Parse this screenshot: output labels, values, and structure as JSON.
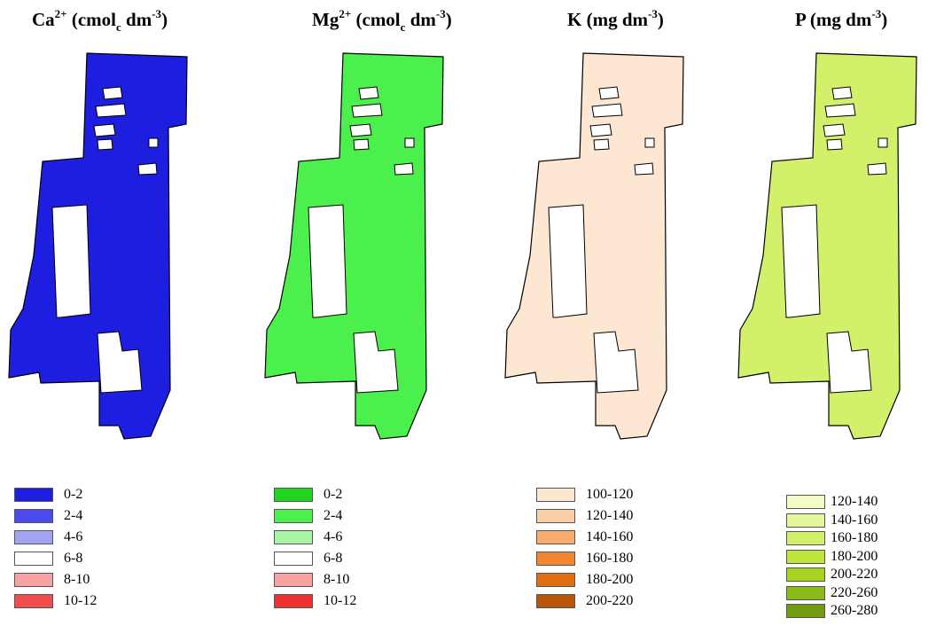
{
  "panels": [
    {
      "id": "ca",
      "title": {
        "main": "Ca",
        "sup": "2+",
        "open": " (cmol",
        "sub": "c",
        "unit": " dm",
        "exp": "-3",
        "close": ")"
      },
      "colors": {
        "base": "#1e1ee0",
        "mid": "#4a4aef",
        "light": "#a3a3f3",
        "white": "#ffffff",
        "pink": "#f7a3a3",
        "red": "#f14d4d"
      },
      "legend": [
        {
          "label": "0-2",
          "color": "#1e1ee0"
        },
        {
          "label": "2-4",
          "color": "#4a4aef"
        },
        {
          "label": "4-6",
          "color": "#a3a3f3"
        },
        {
          "label": "6-8",
          "color": "#ffffff"
        },
        {
          "label": "8-10",
          "color": "#f7a3a3"
        },
        {
          "label": "10-12",
          "color": "#f14d4d"
        }
      ]
    },
    {
      "id": "mg",
      "title": {
        "main": "Mg",
        "sup": "2+",
        "open": " (cmol",
        "sub": "c",
        "unit": " dm",
        "exp": "-3",
        "close": ")"
      },
      "colors": {
        "base": "#4cf04c",
        "mid": "#22d322",
        "light": "#a8f5a8",
        "white": "#ffffff",
        "pink": "#f7a3a3",
        "red": "#ee3030"
      },
      "legend": [
        {
          "label": "0-2",
          "color": "#22d322"
        },
        {
          "label": "2-4",
          "color": "#4cf04c"
        },
        {
          "label": "4-6",
          "color": "#a8f5a8"
        },
        {
          "label": "6-8",
          "color": "#ffffff"
        },
        {
          "label": "8-10",
          "color": "#f7a3a3"
        },
        {
          "label": "10-12",
          "color": "#ee3030"
        }
      ]
    },
    {
      "id": "k",
      "title": {
        "main": "K",
        "sup": "",
        "open": " (mg",
        "sub": "",
        "unit": " dm",
        "exp": "-3",
        "close": ")"
      },
      "colors": {
        "c1": "#fde6d2",
        "c2": "#fbcfa8",
        "c3": "#f8ad6e",
        "c4": "#f0862e",
        "c5": "#df6f12",
        "c6": "#b95508"
      },
      "legend": [
        {
          "label": "100-120",
          "color": "#fde6d2"
        },
        {
          "label": "120-140",
          "color": "#fbcfa8"
        },
        {
          "label": "140-160",
          "color": "#f8ad6e"
        },
        {
          "label": "160-180",
          "color": "#f0862e"
        },
        {
          "label": "180-200",
          "color": "#df6f12"
        },
        {
          "label": "200-220",
          "color": "#b95508"
        }
      ]
    },
    {
      "id": "p",
      "title": {
        "main": "P",
        "sup": "",
        "open": " (mg",
        "sub": "",
        "unit": " dm",
        "exp": "-3",
        "close": ")"
      },
      "colors": {
        "c1": "#f3fbc4",
        "c2": "#e4f79a",
        "c3": "#d3f06a",
        "c4": "#c0e53b",
        "c5": "#a6d31f",
        "c6": "#8ab91a",
        "c7": "#6f9c10"
      },
      "legend": [
        {
          "label": "120-140",
          "color": "#f3fbc4"
        },
        {
          "label": "140-160",
          "color": "#e4f79a"
        },
        {
          "label": "160-180",
          "color": "#d3f06a"
        },
        {
          "label": "180-200",
          "color": "#c0e53b"
        },
        {
          "label": "200-220",
          "color": "#a6d31f"
        },
        {
          "label": "220-260",
          "color": "#8ab91a"
        },
        {
          "label": "260-280",
          "color": "#6f9c10"
        }
      ]
    }
  ]
}
